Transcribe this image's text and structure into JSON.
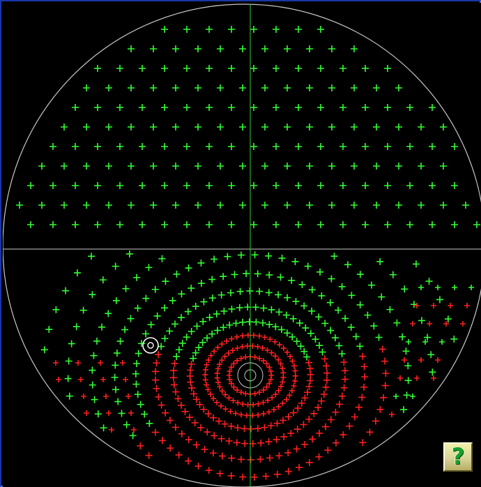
{
  "help_button": {
    "label": "?"
  },
  "colors": {
    "background": "#000000",
    "boundary_circle": "#c8c8c8",
    "axis_lines": "#cccccc",
    "vertical_axis": "#33cc33",
    "green_cross": "#33ff33",
    "red_cross": "#ff2020",
    "highlight_marker": "#ffffff",
    "frame": "#1736a8"
  },
  "icons": {
    "help": "question-mark-icon",
    "marker": "target-circle-icon"
  }
}
